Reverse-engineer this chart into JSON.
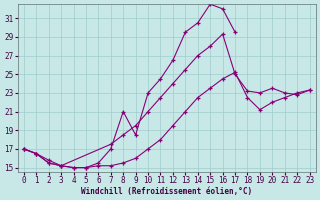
{
  "background_color": "#c8e8e8",
  "grid_color": "#a0cccc",
  "line_color": "#880077",
  "xlabel": "Windchill (Refroidissement éolien,°C)",
  "xlim": [
    -0.5,
    23.5
  ],
  "ylim": [
    14.5,
    32.5
  ],
  "yticks": [
    15,
    17,
    19,
    21,
    23,
    25,
    27,
    29,
    31
  ],
  "xticks": [
    0,
    1,
    2,
    3,
    4,
    5,
    6,
    7,
    8,
    9,
    10,
    11,
    12,
    13,
    14,
    15,
    16,
    17,
    18,
    19,
    20,
    21,
    22,
    23
  ],
  "line1_x": [
    0,
    1,
    2,
    3,
    4,
    5,
    6,
    7,
    8,
    9,
    10,
    11,
    12,
    13,
    14,
    15,
    16,
    17
  ],
  "line1_y": [
    17.0,
    16.5,
    15.8,
    15.2,
    15.0,
    15.0,
    15.5,
    17.0,
    21.0,
    18.5,
    23.0,
    24.5,
    26.5,
    29.5,
    30.5,
    32.5,
    32.0,
    29.5
  ],
  "line2_x": [
    0,
    1,
    2,
    3,
    7,
    8,
    9,
    10,
    11,
    12,
    13,
    14,
    15,
    16,
    17,
    18,
    19,
    20,
    21,
    22,
    23
  ],
  "line2_y": [
    17.0,
    16.5,
    15.5,
    15.2,
    17.5,
    18.5,
    19.5,
    21.0,
    22.5,
    24.0,
    25.5,
    27.0,
    28.0,
    29.3,
    25.0,
    23.2,
    23.0,
    23.5,
    23.0,
    22.8,
    23.3
  ],
  "line3_x": [
    0,
    1,
    2,
    3,
    4,
    5,
    6,
    7,
    8,
    9,
    10,
    11,
    12,
    13,
    14,
    15,
    16,
    17,
    18,
    19,
    20,
    21,
    22,
    23
  ],
  "line3_y": [
    17.0,
    16.5,
    15.5,
    15.2,
    15.0,
    15.0,
    15.2,
    15.2,
    15.5,
    16.0,
    17.0,
    18.0,
    19.5,
    21.0,
    22.5,
    23.5,
    24.5,
    25.2,
    22.5,
    21.2,
    22.0,
    22.5,
    23.0,
    23.3
  ]
}
